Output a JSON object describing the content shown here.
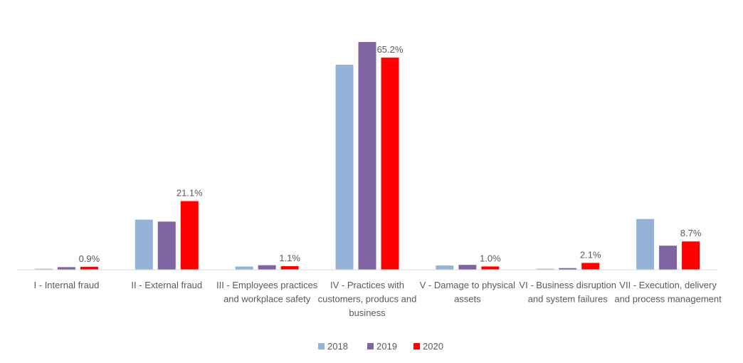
{
  "chart_data": {
    "type": "bar",
    "title": "",
    "xlabel": "",
    "ylabel": "",
    "ylim": [
      0,
      70
    ],
    "grid": false,
    "legend_position": "bottom-center",
    "categories": [
      [
        "I - Internal fraud"
      ],
      [
        "II - External fraud"
      ],
      [
        "III - Employees practices",
        "and workplace safety"
      ],
      [
        "IV - Practices with",
        "customers, producs and",
        "business"
      ],
      [
        "V - Damage to physical",
        "assets"
      ],
      [
        "VI - Business disruption",
        "and system failures"
      ],
      [
        "VII - Execution, delivery",
        "and process management"
      ]
    ],
    "series": [
      {
        "name": "2018",
        "color": "#95B3D7",
        "values": [
          0.3,
          15.4,
          1.0,
          63.0,
          1.3,
          0.3,
          15.6
        ]
      },
      {
        "name": "2019",
        "color": "#8064A2",
        "values": [
          0.8,
          14.8,
          1.4,
          70.0,
          1.5,
          0.5,
          7.4
        ]
      },
      {
        "name": "2020",
        "color": "#FF0000",
        "values": [
          0.9,
          21.1,
          1.1,
          65.2,
          1.0,
          2.1,
          8.7
        ]
      }
    ],
    "data_labels": {
      "series": "2020",
      "labels": [
        "0.9%",
        "21.1%",
        "1.1%",
        "65.2%",
        "1.0%",
        "2.1%",
        "8.7%"
      ]
    }
  }
}
